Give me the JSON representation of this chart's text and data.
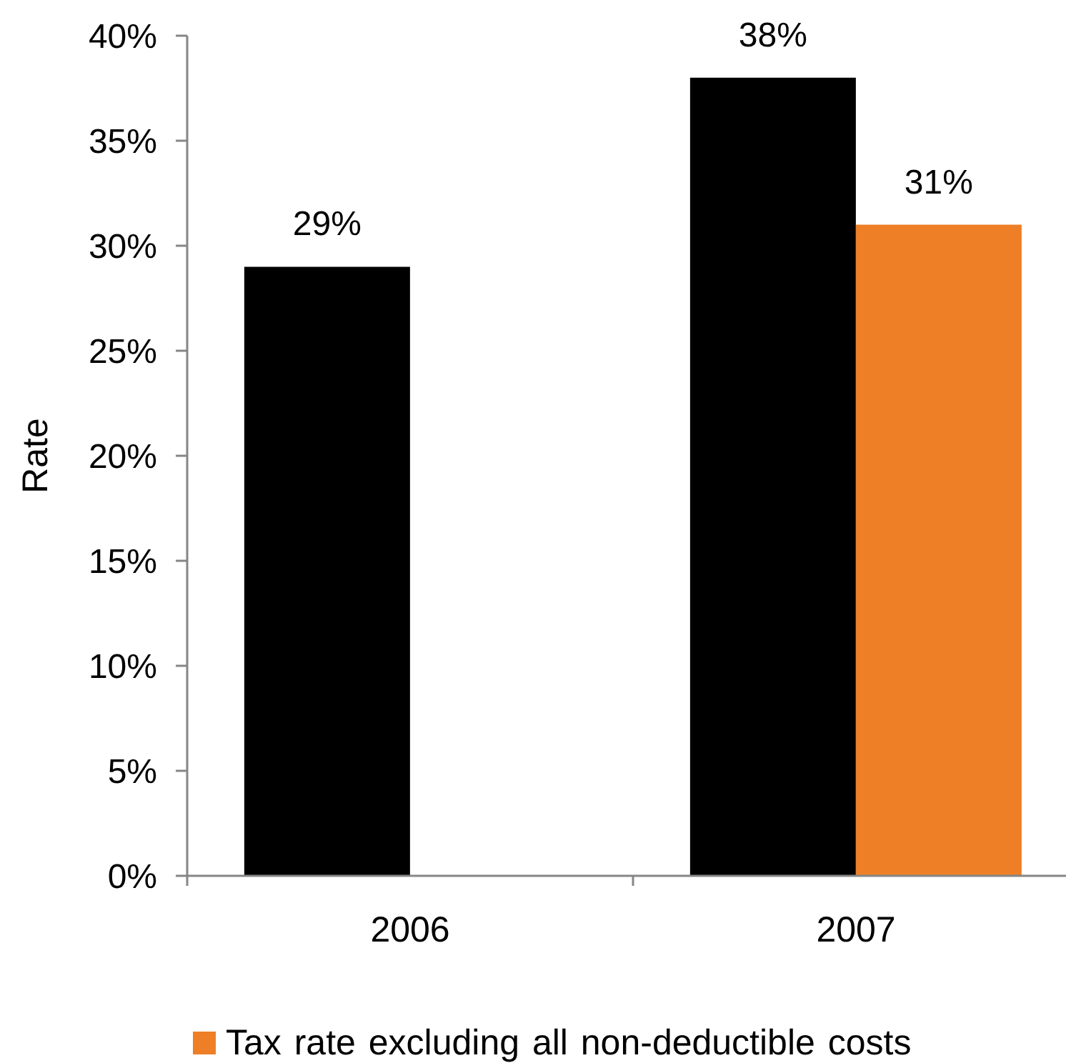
{
  "chart_data": {
    "type": "bar",
    "categories": [
      "2006",
      "2007"
    ],
    "ylabel": "Rate",
    "series": [
      {
        "color": "#000000",
        "values": [
          29,
          38
        ],
        "value_labels": [
          "29%",
          "38%"
        ]
      },
      {
        "name": "Tax rate excluding all non-deductible costs",
        "color": "#ee7f26",
        "values": [
          null,
          31
        ],
        "value_labels": [
          null,
          "31%"
        ]
      }
    ],
    "ylim": [
      0,
      40
    ],
    "yticks": [
      {
        "value": 0,
        "label": "0%"
      },
      {
        "value": 5,
        "label": "5%"
      },
      {
        "value": 10,
        "label": "10%"
      },
      {
        "value": 15,
        "label": "15%"
      },
      {
        "value": 20,
        "label": "20%"
      },
      {
        "value": 25,
        "label": "25%"
      },
      {
        "value": 30,
        "label": "30%"
      },
      {
        "value": 35,
        "label": "35%"
      },
      {
        "value": 40,
        "label": "40%"
      }
    ],
    "legend": "bottom"
  }
}
